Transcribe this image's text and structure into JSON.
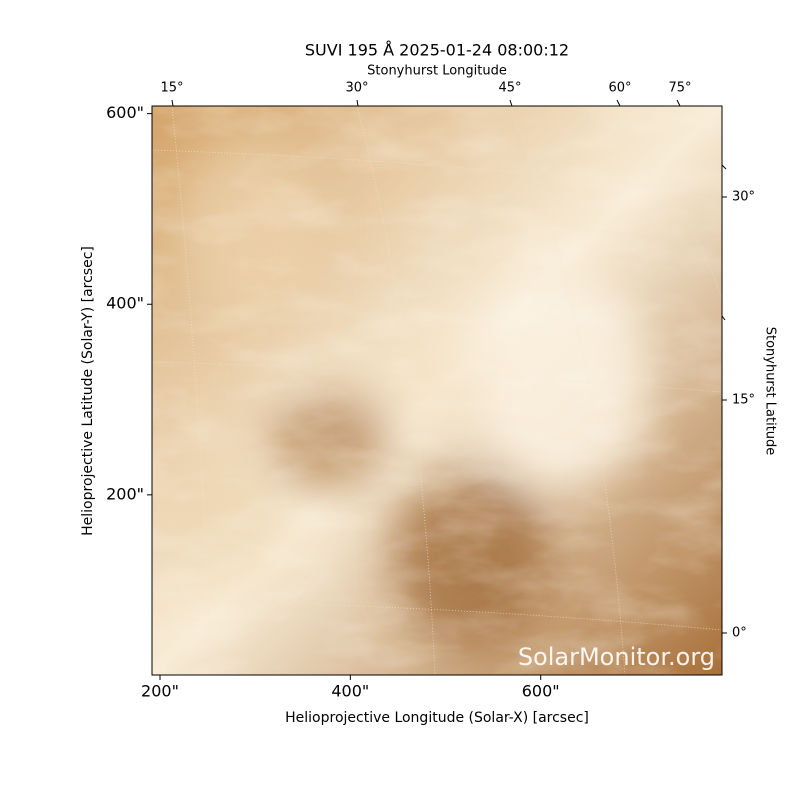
{
  "chart_data": {
    "type": "image",
    "title": "SUVI 195 Å 2025-01-24 08:00:12",
    "top_axis_label": "Stonyhurst Longitude",
    "top_ticks": [
      "15°",
      "30°",
      "45°",
      "60°",
      "75°"
    ],
    "right_axis_label": "Stonyhurst Latitude",
    "right_ticks": [
      "30°",
      "15°",
      "0°"
    ],
    "x_label": "Helioprojective Longitude (Solar-X) [arcsec]",
    "y_label": "Helioprojective Latitude (Solar-Y) [arcsec]",
    "xlim": [
      191.6,
      790.5
    ],
    "ylim": [
      11,
      608
    ],
    "xticks": [
      {
        "value": 200,
        "label": "200\""
      },
      {
        "value": 400,
        "label": "400\""
      },
      {
        "value": 600,
        "label": "600\""
      }
    ],
    "yticks": [
      {
        "value": 200,
        "label": "200\""
      },
      {
        "value": 400,
        "label": "400\""
      },
      {
        "value": 600,
        "label": "600\""
      }
    ],
    "watermark": "SolarMonitor.org",
    "colormap": [
      "#a8703a",
      "#d4a46a",
      "#f8ecd6"
    ]
  }
}
